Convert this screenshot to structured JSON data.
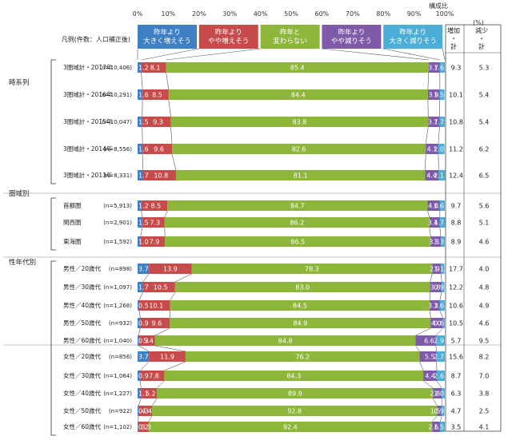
{
  "chart_data": {
    "type": "bar",
    "stacked": true,
    "orientation": "horizontal",
    "unit_label": "(%)",
    "ratio_label": "構成比",
    "legend_label": "凡例(件数：人口補正後)",
    "xlim": [
      0,
      100
    ],
    "x_ticks": [
      "0%",
      "10%",
      "20%",
      "30%",
      "40%",
      "50%",
      "60%",
      "70%",
      "80%",
      "90%",
      "100%"
    ],
    "legend": [
      {
        "name": "昨年より\n大きく増えそう",
        "color": "#3f7fc4"
      },
      {
        "name": "昨年より\nやや増えそう",
        "color": "#c84b4b"
      },
      {
        "name": "昨年と\n変わらない",
        "color": "#8db63a"
      },
      {
        "name": "昨年より\nやや減りそう",
        "color": "#7e5aa8"
      },
      {
        "name": "昨年より\n大きく減りそう",
        "color": "#4aaed6"
      }
    ],
    "colors": [
      "#3f7fc4",
      "#c84b4b",
      "#8db63a",
      "#7e5aa8",
      "#4aaed6"
    ],
    "side_headers": [
      "増加・計",
      "減少・計"
    ],
    "groups": [
      {
        "label": "時系列",
        "rows": [
          0,
          1,
          2,
          3,
          4
        ]
      },
      {
        "label": "圏域別",
        "rows": [
          5,
          6,
          7
        ]
      },
      {
        "label": "性年代別",
        "rows": [
          8,
          9,
          10,
          11,
          12,
          13,
          14,
          15,
          16,
          17
        ]
      }
    ],
    "rows": [
      {
        "label": "3圏域計・2017年",
        "n": "(n=10,406)",
        "values": [
          1.2,
          8.1,
          85.4,
          3.7,
          1.6
        ],
        "increase": 9.3,
        "decrease": 5.3
      },
      {
        "label": "3圏域計・2016年",
        "n": "(n=10,291)",
        "values": [
          1.6,
          8.5,
          84.4,
          3.9,
          1.5
        ],
        "increase": 10.1,
        "decrease": 5.4
      },
      {
        "label": "3圏域計・2015年",
        "n": "(n=10,047)",
        "values": [
          1.5,
          9.3,
          83.8,
          3.7,
          1.7
        ],
        "increase": 10.8,
        "decrease": 5.4
      },
      {
        "label": "3圏域計・2014年",
        "n": "(n=8,556)",
        "values": [
          1.6,
          9.6,
          82.6,
          4.1,
          2.0
        ],
        "increase": 11.2,
        "decrease": 6.2
      },
      {
        "label": "3圏域計・2013年",
        "n": "(n=8,331)",
        "values": [
          1.7,
          10.8,
          81.1,
          4.4,
          2.1
        ],
        "increase": 12.4,
        "decrease": 6.5
      },
      {
        "label": "首都圏",
        "n": "(n=5,913)",
        "values": [
          1.2,
          8.5,
          84.7,
          4.0,
          1.6
        ],
        "increase": 9.7,
        "decrease": 5.6
      },
      {
        "label": "関西圏",
        "n": "(n=2,901)",
        "values": [
          1.5,
          7.3,
          86.2,
          3.4,
          1.7
        ],
        "increase": 8.8,
        "decrease": 5.1
      },
      {
        "label": "東海圏",
        "n": "(n=1,592)",
        "values": [
          1.0,
          7.9,
          86.5,
          3.3,
          1.3
        ],
        "increase": 8.9,
        "decrease": 4.6
      },
      {
        "label": "男性／20歳代",
        "n": "(n=898)",
        "values": [
          3.7,
          13.9,
          78.3,
          2.9,
          1.1
        ],
        "increase": 17.7,
        "decrease": 4.0
      },
      {
        "label": "男性／30歳代",
        "n": "(n=1,097)",
        "values": [
          1.7,
          10.5,
          83.0,
          3.8,
          0.9
        ],
        "increase": 12.2,
        "decrease": 4.8
      },
      {
        "label": "男性／40歳代",
        "n": "(n=1,268)",
        "values": [
          0.5,
          10.1,
          84.5,
          3.3,
          1.6
        ],
        "increase": 10.6,
        "decrease": 4.9
      },
      {
        "label": "男性／50歳代",
        "n": "(n=932)",
        "values": [
          0.9,
          9.6,
          84.9,
          4.0,
          0.6
        ],
        "increase": 10.5,
        "decrease": 4.6
      },
      {
        "label": "男性／60歳代",
        "n": "(n=1,040)",
        "values": [
          0.3,
          5.4,
          84.8,
          6.6,
          2.9
        ],
        "increase": 5.7,
        "decrease": 9.5
      },
      {
        "label": "女性／20歳代",
        "n": "(n=856)",
        "values": [
          3.7,
          11.9,
          76.2,
          5.5,
          2.7
        ],
        "increase": 15.6,
        "decrease": 8.2
      },
      {
        "label": "女性／30歳代",
        "n": "(n=1,064)",
        "values": [
          0.9,
          7.8,
          84.3,
          4.4,
          2.6
        ],
        "increase": 8.7,
        "decrease": 7.0
      },
      {
        "label": "女性／40歳代",
        "n": "(n=1,227)",
        "values": [
          1.1,
          5.2,
          89.9,
          2.8,
          1.0
        ],
        "increase": 6.3,
        "decrease": 3.8
      },
      {
        "label": "女性／50歳代",
        "n": "(n=922)",
        "values": [
          0.3,
          4.4,
          92.8,
          1.5,
          0.9
        ],
        "increase": 4.7,
        "decrease": 2.5
      },
      {
        "label": "女性／60歳代",
        "n": "(n=1,102)",
        "values": [
          0.2,
          3.3,
          92.4,
          2.6,
          1.5
        ],
        "increase": 3.5,
        "decrease": 4.1
      }
    ]
  }
}
